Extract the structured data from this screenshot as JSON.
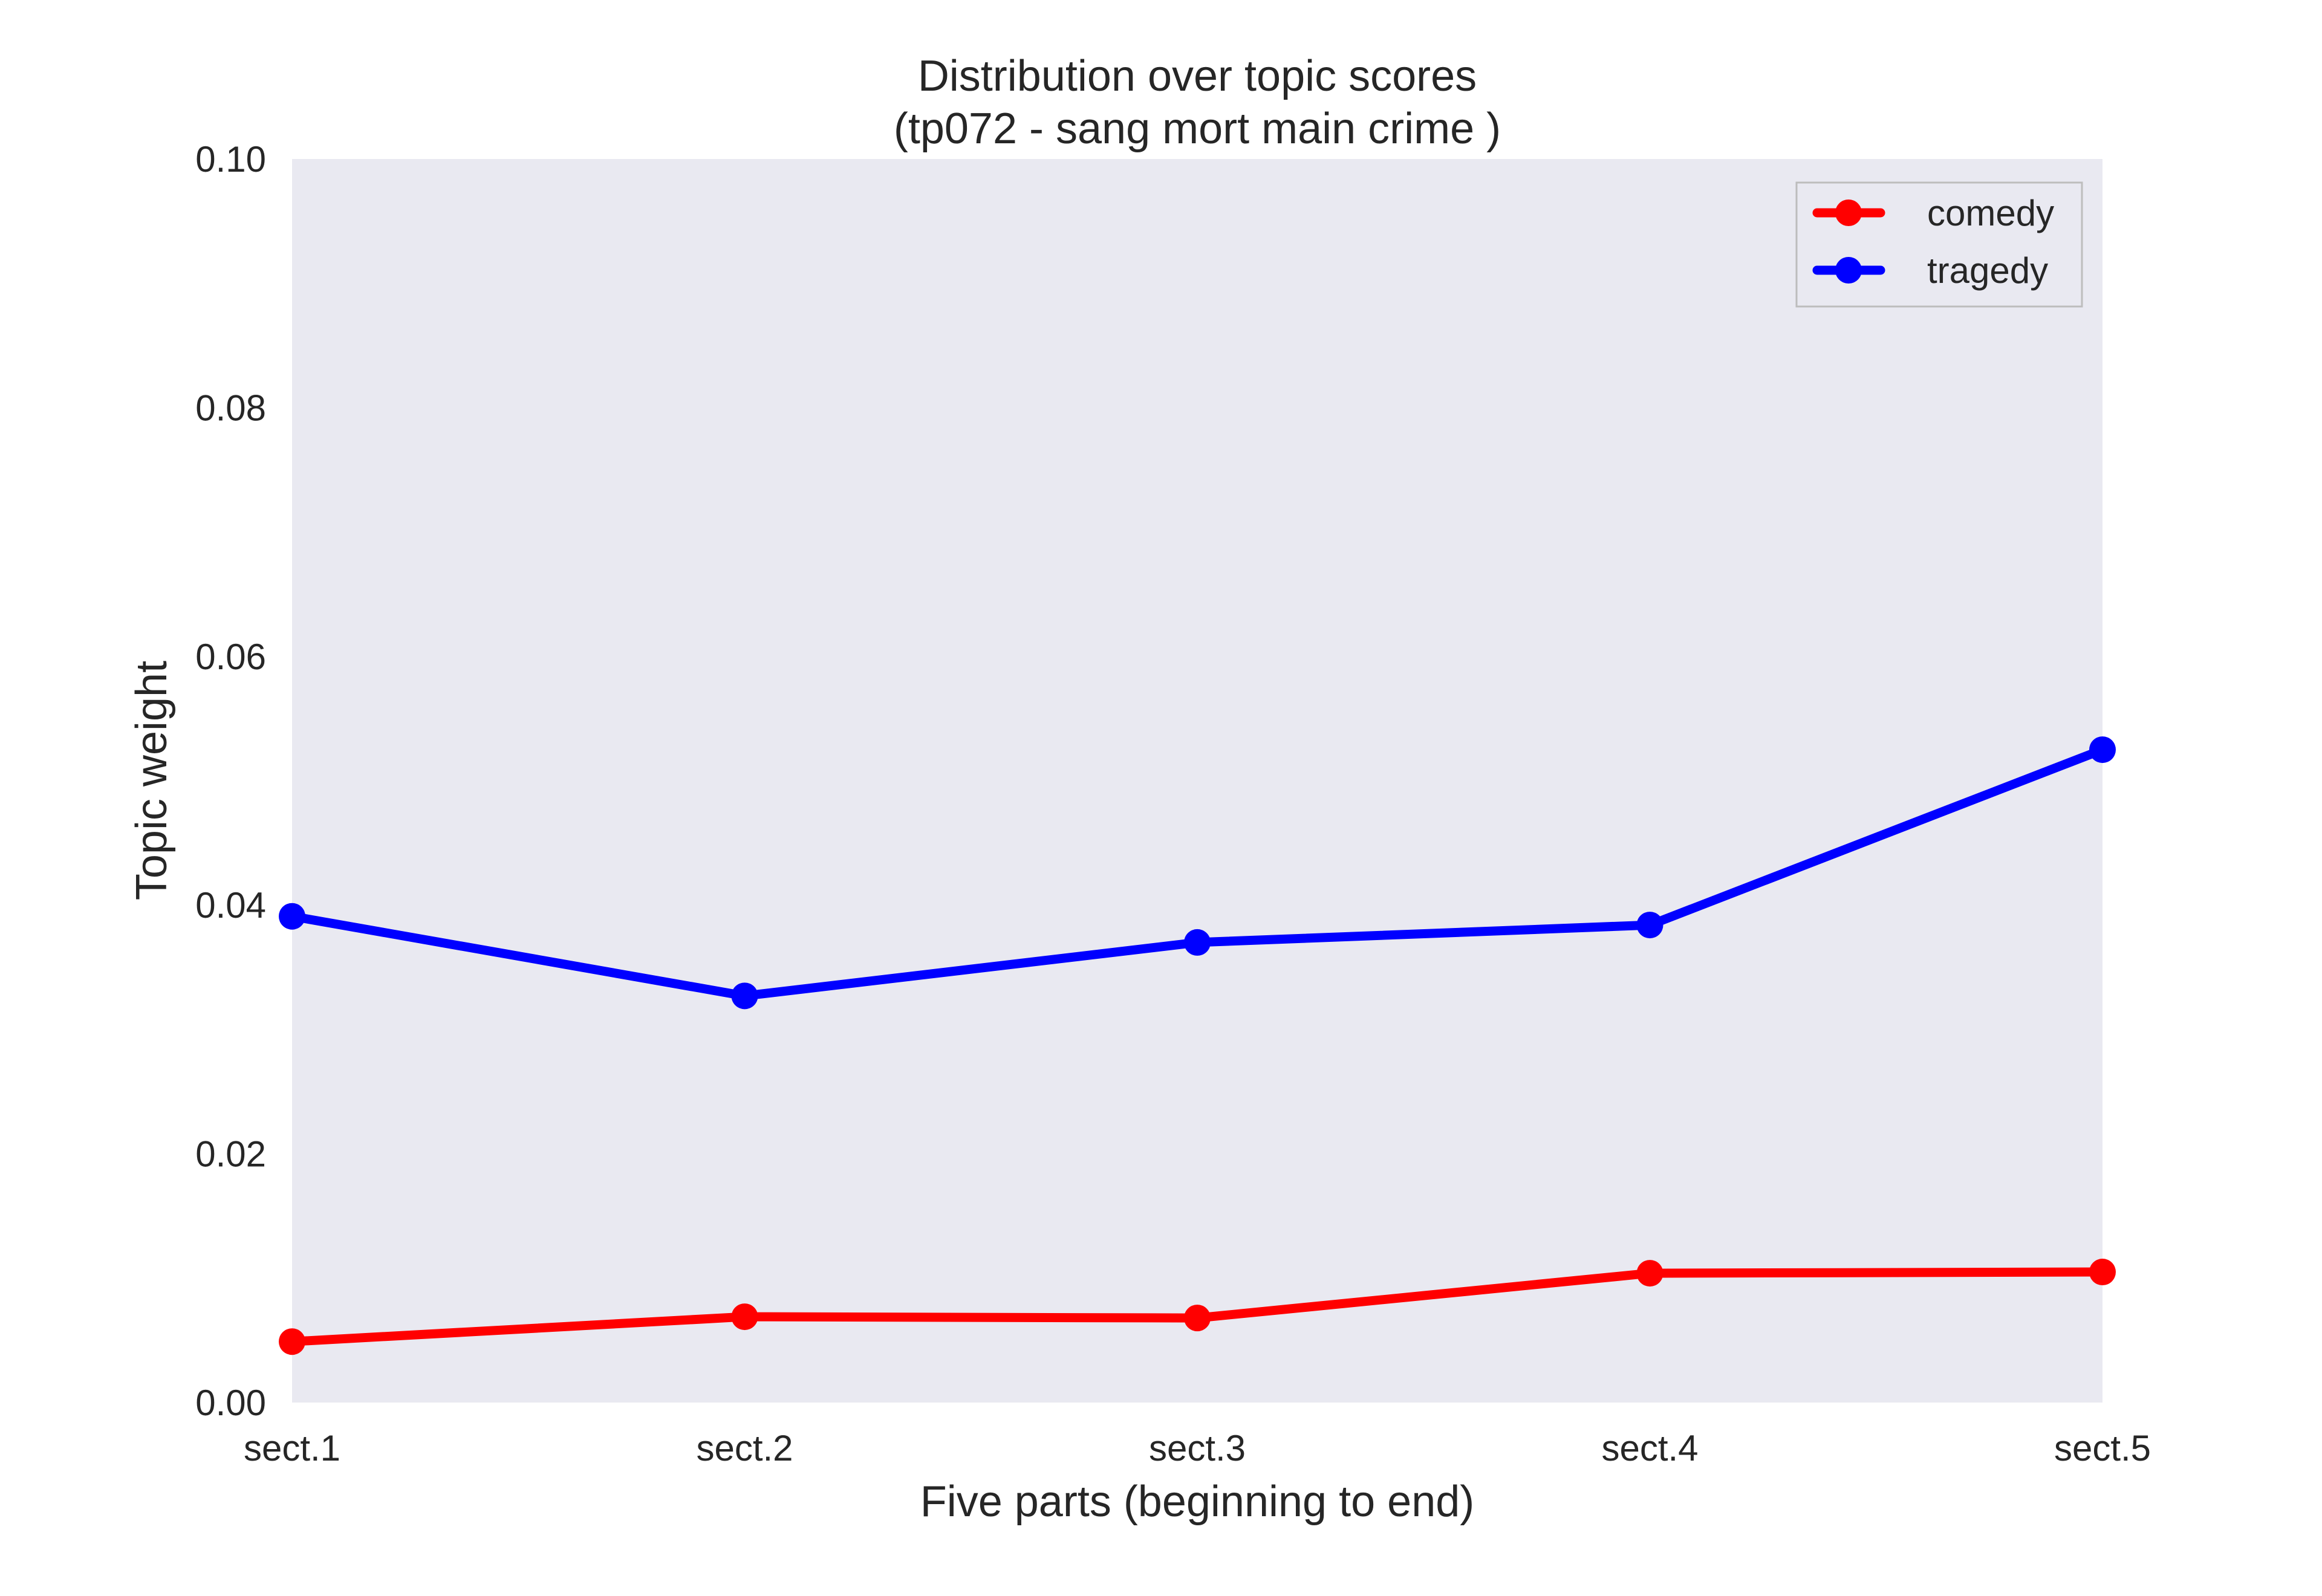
{
  "chart_data": {
    "type": "line",
    "title": "Distribution over topic scores",
    "subtitle": "(tp072 - sang mort main crime )",
    "xlabel": "Five parts (beginning to end)",
    "ylabel": "Topic weight",
    "categories": [
      "sect.1",
      "sect.2",
      "sect.3",
      "sect.4",
      "sect.5"
    ],
    "ylim": [
      0,
      0.1
    ],
    "yticks": [
      "0.00",
      "0.02",
      "0.04",
      "0.06",
      "0.08",
      "0.10"
    ],
    "ytick_values": [
      0,
      0.02,
      0.04,
      0.06,
      0.08,
      0.1
    ],
    "grid": false,
    "legend_position": "top-right",
    "background_color": "#e9e9f1",
    "series": [
      {
        "name": "comedy",
        "color": "#ff0000",
        "values": [
          0.0049,
          0.0069,
          0.0068,
          0.0104,
          0.0105
        ]
      },
      {
        "name": "tragedy",
        "color": "#0000ff",
        "values": [
          0.0391,
          0.0327,
          0.037,
          0.0384,
          0.0525
        ]
      }
    ]
  }
}
